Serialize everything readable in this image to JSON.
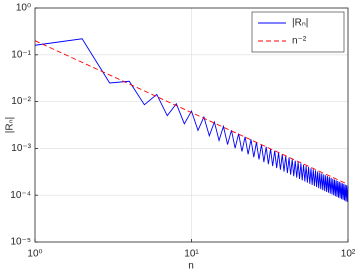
{
  "chart_data": {
    "type": "line",
    "xlabel": "n",
    "ylabel": "|Rₙ|",
    "xscale": "log",
    "yscale": "log",
    "grid": true,
    "legend": "upper right",
    "xlim": [
      1,
      100
    ],
    "ylim": [
      1e-05,
      1
    ],
    "xticks": [
      {
        "value": 1,
        "label": "10⁰"
      },
      {
        "value": 10,
        "label": "10¹"
      },
      {
        "value": 100,
        "label": "10²"
      }
    ],
    "yticks": [
      {
        "value": 1e-05,
        "label": "10⁻⁵"
      },
      {
        "value": 0.0001,
        "label": "10⁻⁴"
      },
      {
        "value": 0.001,
        "label": "10⁻³"
      },
      {
        "value": 0.01,
        "label": "10⁻²"
      },
      {
        "value": 0.1,
        "label": "10⁻¹"
      },
      {
        "value": 1,
        "label": "10⁰"
      }
    ],
    "series": [
      {
        "name": "|Rₙ|",
        "color": "#0000ff",
        "dash": "solid",
        "x": [
          1,
          2,
          3,
          4,
          5,
          6,
          7,
          8,
          9,
          10,
          11,
          12,
          13,
          14,
          15,
          16,
          17,
          18,
          19,
          20,
          21,
          22,
          23,
          24,
          25,
          26,
          27,
          28,
          29,
          30,
          31,
          32,
          33,
          34,
          35,
          36,
          37,
          38,
          39,
          40,
          41,
          42,
          43,
          44,
          45,
          46,
          47,
          48,
          49,
          50,
          51,
          52,
          53,
          54,
          55,
          56,
          57,
          58,
          59,
          60,
          61,
          62,
          63,
          64,
          65,
          66,
          67,
          68,
          69,
          70,
          71,
          72,
          73,
          74,
          75,
          76,
          77,
          78,
          79,
          80,
          81,
          82,
          83,
          84,
          85,
          86,
          87,
          88,
          89,
          90,
          91,
          92,
          93,
          94,
          95,
          96,
          97,
          98,
          99,
          100
        ],
        "values": [
          0.16,
          0.22,
          0.025,
          0.0272,
          0.00857,
          0.01422,
          0.005,
          0.00897,
          0.00335,
          0.00628,
          0.00243,
          0.00469,
          0.00186,
          0.00367,
          0.00148,
          0.00296,
          0.00121,
          0.00245,
          0.00101,
          0.00207,
          0.00086,
          0.00178,
          0.00075,
          0.00155,
          0.00065,
          0.00136,
          0.00058,
          0.00121,
          0.00051,
          0.00108,
          0.00046,
          0.000975,
          0.00042,
          0.000886,
          0.00038,
          0.000808,
          0.00035,
          0.000741,
          0.00032,
          0.000683,
          0.000297,
          0.000632,
          0.000274,
          0.000586,
          0.000255,
          0.000546,
          0.000238,
          0.00051,
          0.000222,
          0.000478,
          0.000208,
          0.000449,
          0.000196,
          0.000423,
          0.000185,
          0.000399,
          0.000175,
          0.000377,
          0.000165,
          0.000357,
          0.000157,
          0.000339,
          0.000149,
          0.000322,
          0.000141,
          0.000307,
          0.000135,
          0.000292,
          0.000128,
          0.000279,
          0.000122,
          0.000266,
          0.000117,
          0.000255,
          0.000113,
          0.000245,
          0.000108,
          0.000235,
          0.000104,
          0.000225,
          9.9e-05,
          0.000216,
          9.5e-05,
          0.000208,
          9.2e-05,
          0.000201,
          8.9e-05,
          0.000194,
          8.6e-05,
          0.000187,
          8.2e-05,
          0.00018,
          8e-05,
          0.000174,
          7.7e-05,
          0.000168,
          7.4e-05,
          0.000163,
          7.2e-05,
          0.000158
        ]
      },
      {
        "name": "n⁻²",
        "color": "#ff0000",
        "dash": "dashed",
        "x": [
          1,
          100
        ],
        "values": [
          0.2,
          0.00017
        ]
      }
    ]
  }
}
